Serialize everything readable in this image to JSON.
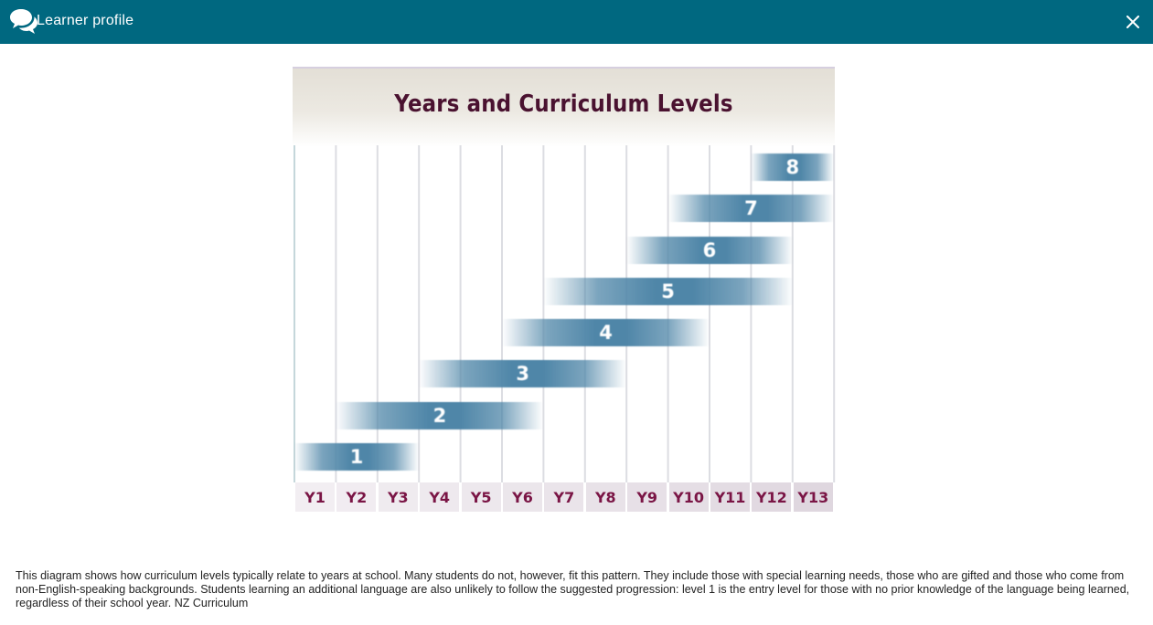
{
  "window": {
    "title": "Learner profile",
    "chat_icon": "chat-bubbles-icon",
    "close_icon": "close-icon",
    "accent": "#006880"
  },
  "diagram": {
    "title": "Years and Curriculum Levels",
    "years": [
      "Y1",
      "Y2",
      "Y3",
      "Y4",
      "Y5",
      "Y6",
      "Y7",
      "Y8",
      "Y9",
      "Y10",
      "Y11",
      "Y12",
      "Y13"
    ],
    "levels": [
      {
        "label": "1",
        "start_year": "Y1",
        "end_year": "Y3"
      },
      {
        "label": "2",
        "start_year": "Y2",
        "end_year": "Y6"
      },
      {
        "label": "3",
        "start_year": "Y4",
        "end_year": "Y8"
      },
      {
        "label": "4",
        "start_year": "Y6",
        "end_year": "Y10"
      },
      {
        "label": "5",
        "start_year": "Y7",
        "end_year": "Y12"
      },
      {
        "label": "6",
        "start_year": "Y9",
        "end_year": "Y12"
      },
      {
        "label": "7",
        "start_year": "Y10",
        "end_year": "Y13"
      },
      {
        "label": "8",
        "start_year": "Y12",
        "end_year": "Y13"
      }
    ],
    "bar_color": "#4f86a8",
    "title_color": "#4a1230",
    "year_label_color": "#7a1545"
  },
  "caption": "This diagram shows how curriculum levels typically relate to years at school. Many students do not, however, fit this pattern. They include those with special learning needs, those who are gifted and those who come from non-English-speaking backgrounds. Students learning an additional language are also unlikely to follow the suggested progression: level 1 is the entry level for those with no prior knowledge of the language being learned, regardless of their school year. NZ Curriculum"
}
